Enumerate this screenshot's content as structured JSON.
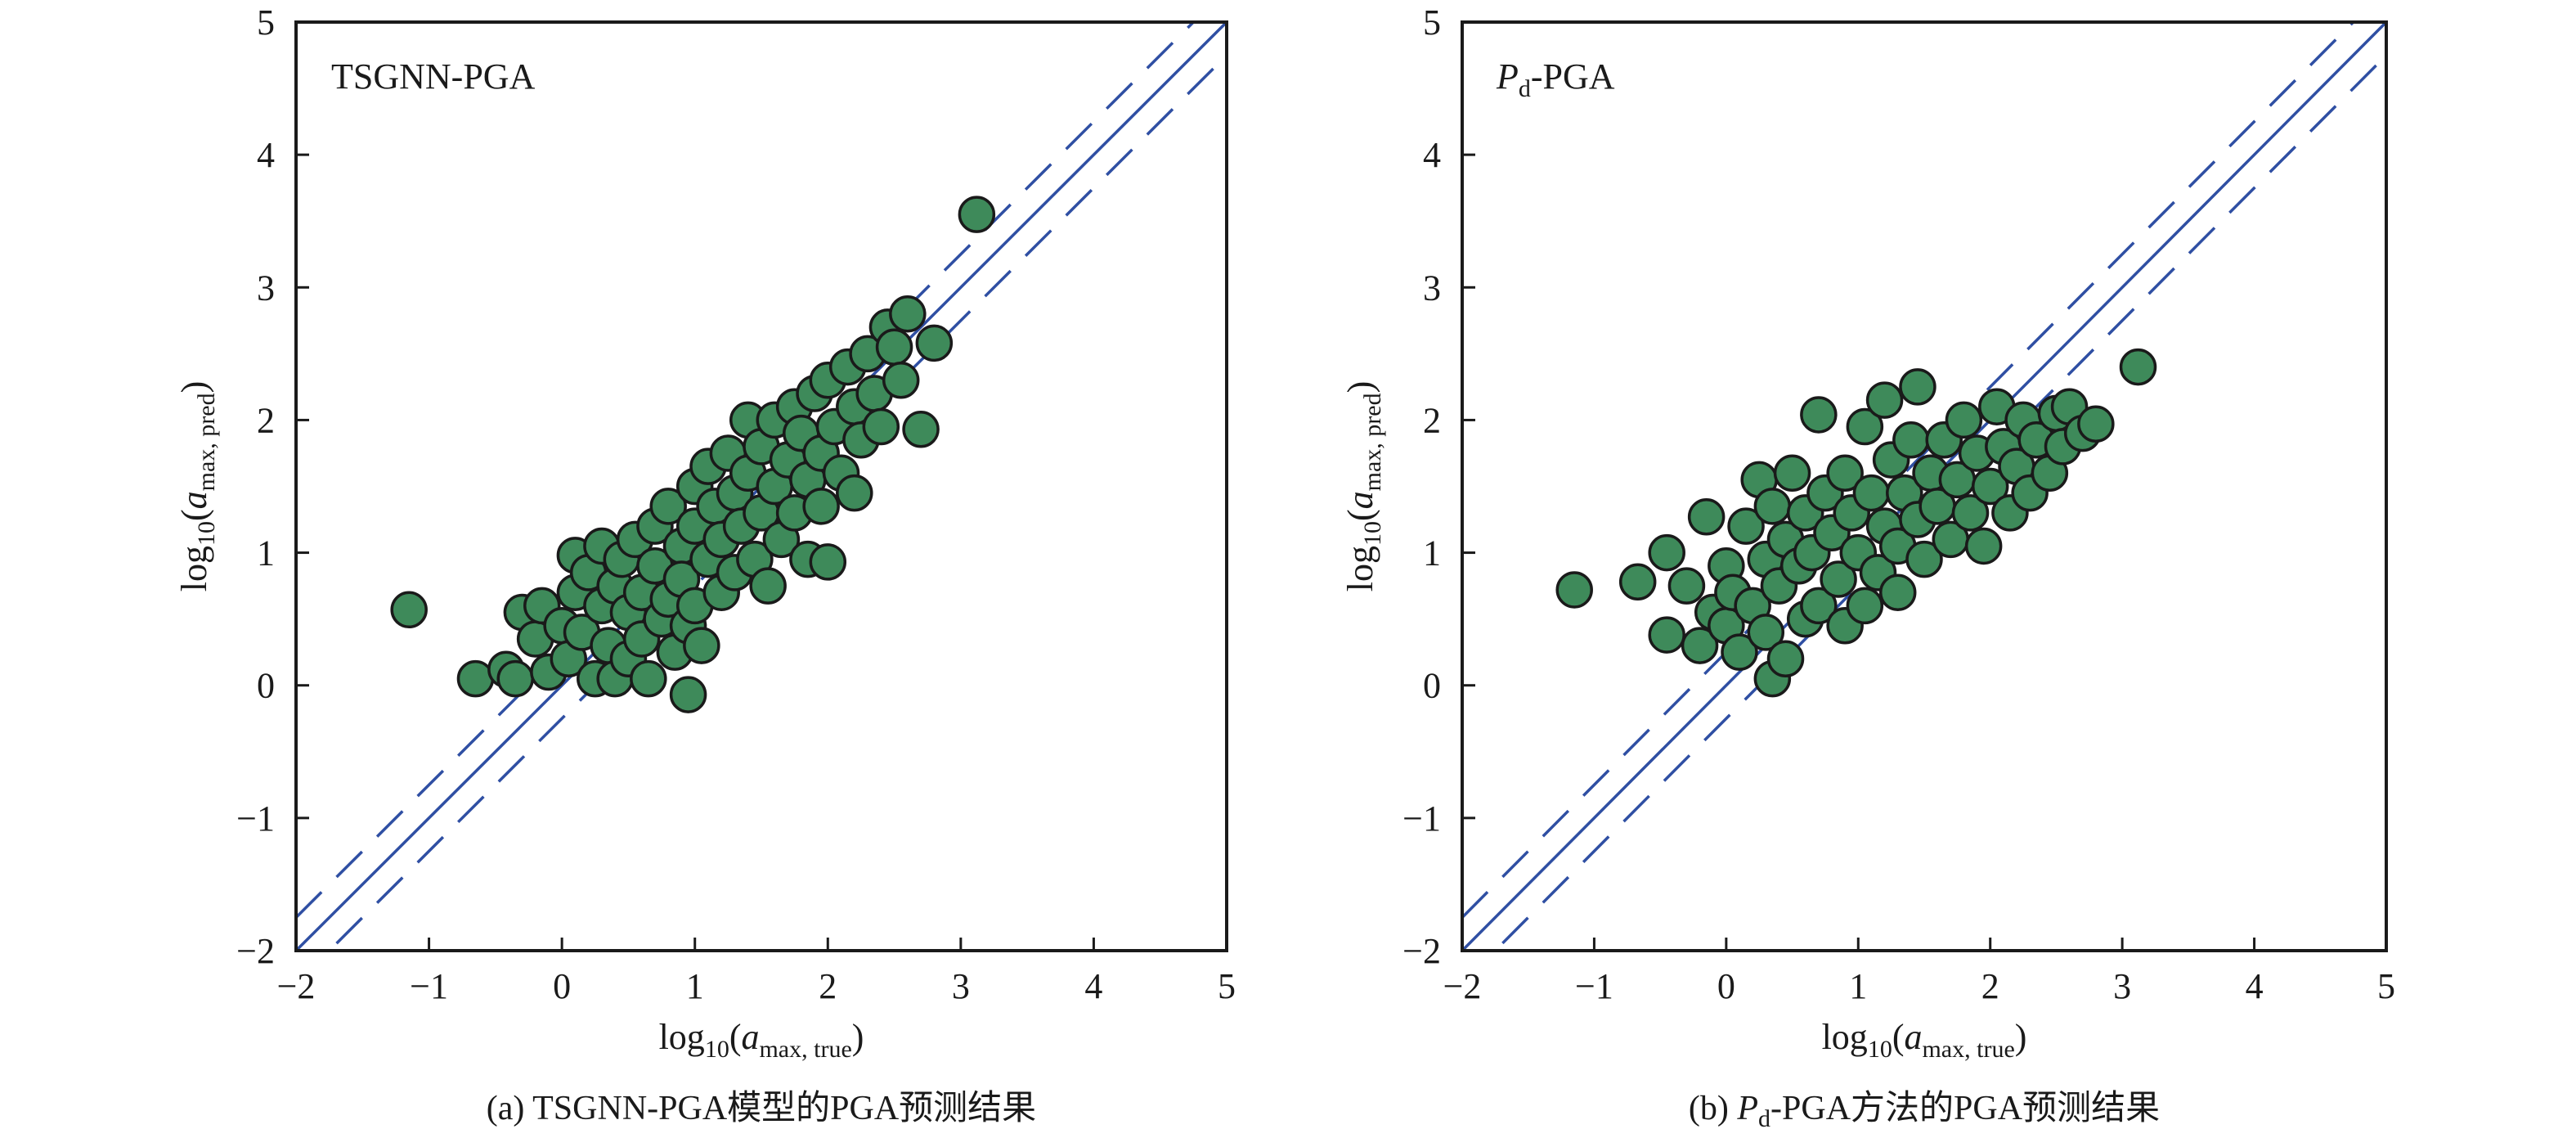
{
  "colors": {
    "point_fill": "#3e8a5a",
    "point_edge": "#1a1a1a",
    "reference_lines": "#2f4fa3",
    "axes": "#1a1a1a"
  },
  "chart_data": [
    {
      "type": "scatter",
      "panel_label": "TSGNN-PGA",
      "caption": {
        "prefix": "(a) TSGNN-PGA模型的PGA预测结果",
        "italic": "",
        "sub": "",
        "suffix": ""
      },
      "xlabel": {
        "base": "log",
        "base_sub": "10",
        "open": "(",
        "var": "a",
        "var_sub": "max, true",
        "close": ")"
      },
      "ylabel": {
        "base": "log",
        "base_sub": "10",
        "open": "(",
        "var": "a",
        "var_sub": "max, pred",
        "close": ")"
      },
      "xlim": [
        -2,
        5
      ],
      "ylim": [
        -2,
        5
      ],
      "xticks": [
        "−2",
        "−1",
        "0",
        "1",
        "2",
        "3",
        "4",
        "5"
      ],
      "yticks": [
        "−2",
        "−1",
        "0",
        "1",
        "2",
        "3",
        "4",
        "5"
      ],
      "grid": false,
      "reference_lines": {
        "solid": "y = x",
        "dashed_offset": 0.25
      },
      "points": [
        [
          -1.15,
          0.57
        ],
        [
          -0.65,
          0.05
        ],
        [
          -0.42,
          0.12
        ],
        [
          -0.35,
          0.05
        ],
        [
          -0.3,
          0.55
        ],
        [
          -0.2,
          0.35
        ],
        [
          -0.15,
          0.6
        ],
        [
          -0.1,
          0.1
        ],
        [
          0,
          0.45
        ],
        [
          0.05,
          0.2
        ],
        [
          0.1,
          0.7
        ],
        [
          0.1,
          0.98
        ],
        [
          0.15,
          0.4
        ],
        [
          0.2,
          0.85
        ],
        [
          0.25,
          0.05
        ],
        [
          0.3,
          1.05
        ],
        [
          0.3,
          0.6
        ],
        [
          0.35,
          0.3
        ],
        [
          0.4,
          0.75
        ],
        [
          0.4,
          0.05
        ],
        [
          0.45,
          0.95
        ],
        [
          0.5,
          0.55
        ],
        [
          0.5,
          0.2
        ],
        [
          0.55,
          1.1
        ],
        [
          0.6,
          0.7
        ],
        [
          0.6,
          0.35
        ],
        [
          0.65,
          0.05
        ],
        [
          0.7,
          1.2
        ],
        [
          0.7,
          0.9
        ],
        [
          0.75,
          0.5
        ],
        [
          0.8,
          1.35
        ],
        [
          0.8,
          0.65
        ],
        [
          0.85,
          0.25
        ],
        [
          0.9,
          1.05
        ],
        [
          0.9,
          0.8
        ],
        [
          0.95,
          -0.07
        ],
        [
          0.95,
          0.45
        ],
        [
          1.0,
          1.5
        ],
        [
          1.0,
          1.2
        ],
        [
          1.0,
          0.6
        ],
        [
          1.05,
          0.3
        ],
        [
          1.1,
          1.65
        ],
        [
          1.1,
          0.95
        ],
        [
          1.15,
          1.35
        ],
        [
          1.2,
          0.7
        ],
        [
          1.2,
          1.1
        ],
        [
          1.25,
          1.75
        ],
        [
          1.3,
          1.45
        ],
        [
          1.3,
          0.85
        ],
        [
          1.35,
          1.2
        ],
        [
          1.4,
          2.0
        ],
        [
          1.4,
          1.6
        ],
        [
          1.45,
          0.95
        ],
        [
          1.5,
          1.3
        ],
        [
          1.5,
          1.8
        ],
        [
          1.55,
          0.75
        ],
        [
          1.6,
          2.0
        ],
        [
          1.6,
          1.5
        ],
        [
          1.65,
          1.1
        ],
        [
          1.7,
          1.7
        ],
        [
          1.75,
          2.1
        ],
        [
          1.75,
          1.3
        ],
        [
          1.8,
          1.9
        ],
        [
          1.85,
          0.95
        ],
        [
          1.85,
          1.55
        ],
        [
          1.9,
          2.2
        ],
        [
          1.95,
          1.75
        ],
        [
          1.95,
          1.35
        ],
        [
          2.0,
          0.93
        ],
        [
          2.0,
          2.3
        ],
        [
          2.05,
          1.95
        ],
        [
          2.1,
          1.6
        ],
        [
          2.15,
          2.4
        ],
        [
          2.2,
          2.1
        ],
        [
          2.2,
          1.45
        ],
        [
          2.25,
          1.85
        ],
        [
          2.3,
          2.5
        ],
        [
          2.35,
          2.2
        ],
        [
          2.4,
          1.95
        ],
        [
          2.45,
          2.7
        ],
        [
          2.5,
          2.55
        ],
        [
          2.55,
          2.3
        ],
        [
          2.6,
          2.8
        ],
        [
          2.7,
          1.93
        ],
        [
          2.8,
          2.58
        ],
        [
          3.12,
          3.55
        ]
      ]
    },
    {
      "type": "scatter",
      "panel_label": {
        "italic": "P",
        "sub": "d",
        "rest": "-PGA"
      },
      "caption": {
        "prefix": "(b) ",
        "italic": "P",
        "sub": "d",
        "suffix": "-PGA方法的PGA预测结果"
      },
      "xlabel": {
        "base": "log",
        "base_sub": "10",
        "open": "(",
        "var": "a",
        "var_sub": "max, true",
        "close": ")"
      },
      "ylabel": {
        "base": "log",
        "base_sub": "10",
        "open": "(",
        "var": "a",
        "var_sub": "max, pred",
        "close": ")"
      },
      "xlim": [
        -2,
        5
      ],
      "ylim": [
        -2,
        5
      ],
      "xticks": [
        "−2",
        "−1",
        "0",
        "1",
        "2",
        "3",
        "4",
        "5"
      ],
      "yticks": [
        "−2",
        "−1",
        "0",
        "1",
        "2",
        "3",
        "4",
        "5"
      ],
      "grid": false,
      "reference_lines": {
        "solid": "y = x",
        "dashed_offset": 0.25
      },
      "points": [
        [
          -1.15,
          0.72
        ],
        [
          -0.67,
          0.78
        ],
        [
          -0.45,
          1.0
        ],
        [
          -0.45,
          0.38
        ],
        [
          -0.3,
          0.75
        ],
        [
          -0.2,
          0.3
        ],
        [
          -0.15,
          1.27
        ],
        [
          -0.1,
          0.55
        ],
        [
          0,
          0.9
        ],
        [
          0,
          0.45
        ],
        [
          0.05,
          0.7
        ],
        [
          0.1,
          0.25
        ],
        [
          0.15,
          1.2
        ],
        [
          0.2,
          0.6
        ],
        [
          0.25,
          1.55
        ],
        [
          0.3,
          0.95
        ],
        [
          0.3,
          0.4
        ],
        [
          0.35,
          0.05
        ],
        [
          0.35,
          1.35
        ],
        [
          0.4,
          0.75
        ],
        [
          0.45,
          1.1
        ],
        [
          0.45,
          0.2
        ],
        [
          0.5,
          1.6
        ],
        [
          0.55,
          0.9
        ],
        [
          0.6,
          0.5
        ],
        [
          0.6,
          1.3
        ],
        [
          0.65,
          1.0
        ],
        [
          0.7,
          2.04
        ],
        [
          0.7,
          0.6
        ],
        [
          0.75,
          1.45
        ],
        [
          0.8,
          1.15
        ],
        [
          0.85,
          0.8
        ],
        [
          0.9,
          1.6
        ],
        [
          0.9,
          0.45
        ],
        [
          0.95,
          1.3
        ],
        [
          1.0,
          1.0
        ],
        [
          1.05,
          1.95
        ],
        [
          1.05,
          0.6
        ],
        [
          1.1,
          1.45
        ],
        [
          1.15,
          0.85
        ],
        [
          1.2,
          2.15
        ],
        [
          1.2,
          1.2
        ],
        [
          1.25,
          1.7
        ],
        [
          1.3,
          0.7
        ],
        [
          1.3,
          1.05
        ],
        [
          1.35,
          1.45
        ],
        [
          1.4,
          1.85
        ],
        [
          1.45,
          2.25
        ],
        [
          1.45,
          1.25
        ],
        [
          1.5,
          0.95
        ],
        [
          1.55,
          1.6
        ],
        [
          1.6,
          1.35
        ],
        [
          1.65,
          1.85
        ],
        [
          1.7,
          1.1
        ],
        [
          1.75,
          1.55
        ],
        [
          1.8,
          2.0
        ],
        [
          1.85,
          1.3
        ],
        [
          1.9,
          1.75
        ],
        [
          1.95,
          1.05
        ],
        [
          2.0,
          1.5
        ],
        [
          2.05,
          2.1
        ],
        [
          2.1,
          1.8
        ],
        [
          2.15,
          1.3
        ],
        [
          2.2,
          1.65
        ],
        [
          2.25,
          2.0
        ],
        [
          2.3,
          1.45
        ],
        [
          2.35,
          1.85
        ],
        [
          2.45,
          1.6
        ],
        [
          2.5,
          2.05
        ],
        [
          2.55,
          1.8
        ],
        [
          2.6,
          2.1
        ],
        [
          2.7,
          1.9
        ],
        [
          2.8,
          1.97
        ],
        [
          3.12,
          2.4
        ]
      ]
    }
  ]
}
